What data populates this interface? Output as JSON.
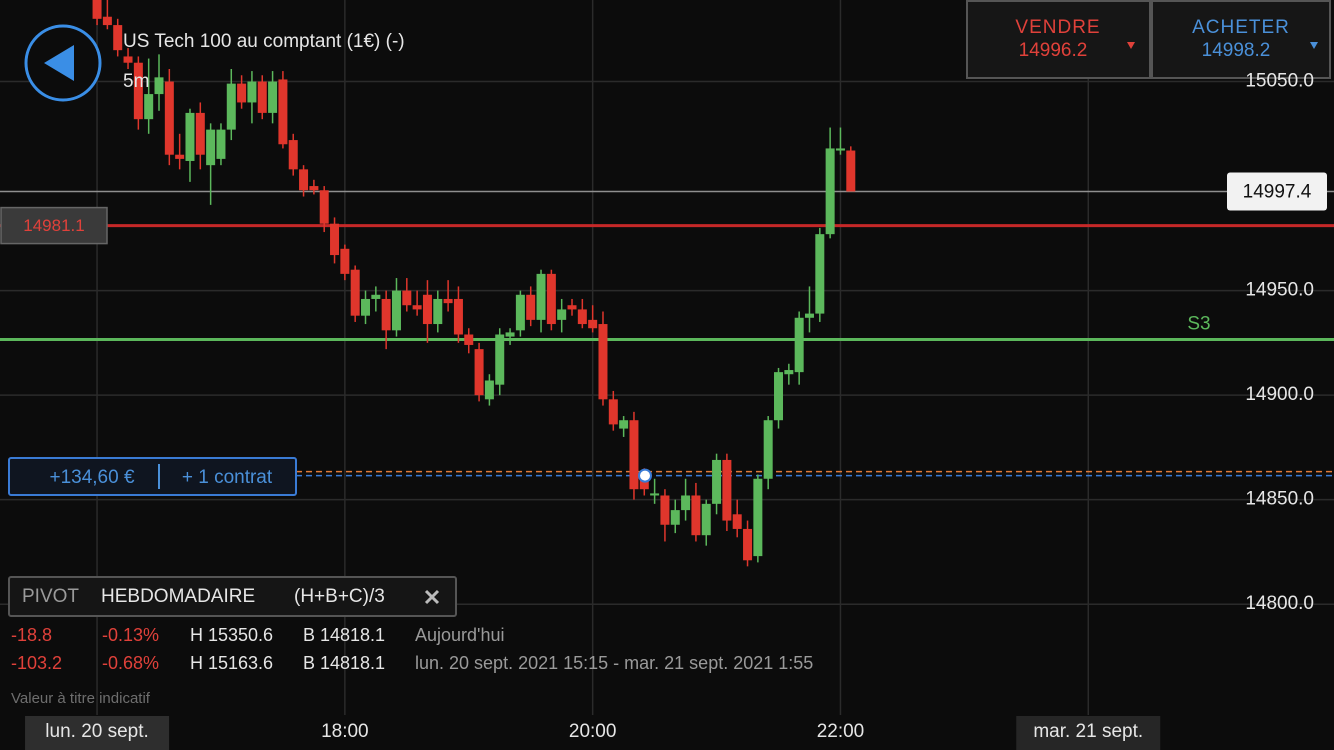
{
  "header": {
    "title": "US Tech 100 au comptant (1€) (-)",
    "interval": "5m"
  },
  "quotes": {
    "sell_label": "VENDRE",
    "sell": 14996.2,
    "buy_label": "ACHETER",
    "buy": 14998.2
  },
  "chart": {
    "type": "candlestick",
    "x": [
      960,
      965,
      970,
      975,
      980,
      985,
      990,
      995,
      1000,
      1005,
      1010,
      1015,
      1020,
      1025,
      1030,
      1035,
      1040,
      1045,
      1050,
      1055,
      1060,
      1065,
      1070,
      1075,
      1080,
      1085,
      1090,
      1095,
      1100,
      1105,
      1110,
      1115,
      1120,
      1125,
      1130,
      1135,
      1140,
      1145,
      1150,
      1155,
      1160,
      1165,
      1170,
      1175,
      1180,
      1185,
      1190,
      1195,
      1200,
      1205,
      1210,
      1215,
      1220,
      1225,
      1230,
      1235,
      1240,
      1245,
      1250,
      1255,
      1260,
      1265,
      1270,
      1275,
      1280,
      1285,
      1290,
      1295,
      1300,
      1305,
      1310,
      1315,
      1320,
      1325
    ],
    "candles": [
      [
        15089,
        15092,
        15077,
        15080
      ],
      [
        15081,
        15089,
        15075,
        15077
      ],
      [
        15077,
        15080,
        15062,
        15065
      ],
      [
        15062,
        15066,
        15056,
        15059
      ],
      [
        15059,
        15062,
        15027,
        15032
      ],
      [
        15032,
        15061,
        15025,
        15044
      ],
      [
        15044,
        15063,
        15036,
        15052
      ],
      [
        15050,
        15056,
        15010,
        15015
      ],
      [
        15015,
        15025,
        15008,
        15013
      ],
      [
        15012,
        15037,
        15002,
        15035
      ],
      [
        15035,
        15040,
        15008,
        15015
      ],
      [
        15010,
        15030,
        14991,
        15027
      ],
      [
        15013,
        15030,
        15010,
        15027
      ],
      [
        15027,
        15056,
        15022,
        15049
      ],
      [
        15049,
        15053,
        15037,
        15040
      ],
      [
        15040,
        15055,
        15030,
        15050
      ],
      [
        15050,
        15053,
        15032,
        15035
      ],
      [
        15035,
        15055,
        15030,
        15050
      ],
      [
        15051,
        15055,
        15018,
        15020
      ],
      [
        15022,
        15025,
        15005,
        15008
      ],
      [
        15008,
        15010,
        14995,
        14998
      ],
      [
        15000,
        15003,
        14996,
        14998
      ],
      [
        14998,
        15000,
        14978,
        14982
      ],
      [
        14982,
        14985,
        14963,
        14967
      ],
      [
        14970,
        14972,
        14955,
        14958
      ],
      [
        14960,
        14962,
        14935,
        14938
      ],
      [
        14938,
        14950,
        14934,
        14946
      ],
      [
        14946,
        14952,
        14940,
        14948
      ],
      [
        14946,
        14950,
        14922,
        14931
      ],
      [
        14931,
        14956,
        14928,
        14950
      ],
      [
        14950,
        14956,
        14940,
        14943
      ],
      [
        14943,
        14950,
        14938,
        14941
      ],
      [
        14948,
        14955,
        14925,
        14934
      ],
      [
        14934,
        14950,
        14930,
        14946
      ],
      [
        14946,
        14955,
        14940,
        14944
      ],
      [
        14946,
        14952,
        14925,
        14929
      ],
      [
        14929,
        14932,
        14920,
        14924
      ],
      [
        14922,
        14925,
        14897,
        14900
      ],
      [
        14898,
        14910,
        14895,
        14907
      ],
      [
        14905,
        14932,
        14900,
        14929
      ],
      [
        14928,
        14932,
        14924,
        14930
      ],
      [
        14931,
        14950,
        14928,
        14948
      ],
      [
        14948,
        14952,
        14933,
        14936
      ],
      [
        14936,
        14960,
        14930,
        14958
      ],
      [
        14958,
        14960,
        14931,
        14934
      ],
      [
        14936,
        14946,
        14930,
        14941
      ],
      [
        14943,
        14946,
        14938,
        14941
      ],
      [
        14941,
        14946,
        14932,
        14934
      ],
      [
        14936,
        14943,
        14930,
        14932
      ],
      [
        14934,
        14940,
        14895,
        14898
      ],
      [
        14898,
        14902,
        14883,
        14886
      ],
      [
        14884,
        14890,
        14880,
        14888
      ],
      [
        14888,
        14892,
        14850,
        14855
      ],
      [
        14862,
        14865,
        14852,
        14855
      ],
      [
        14852,
        14860,
        14848,
        14853
      ],
      [
        14852,
        14855,
        14830,
        14838
      ],
      [
        14838,
        14850,
        14834,
        14845
      ],
      [
        14845,
        14860,
        14840,
        14852
      ],
      [
        14852,
        14858,
        14830,
        14833
      ],
      [
        14833,
        14850,
        14828,
        14848
      ],
      [
        14848,
        14872,
        14843,
        14869
      ],
      [
        14869,
        14872,
        14835,
        14840
      ],
      [
        14843,
        14850,
        14832,
        14836
      ],
      [
        14836,
        14840,
        14818.1,
        14821
      ],
      [
        14823,
        14862,
        14820,
        14860
      ],
      [
        14860,
        14890,
        14855,
        14888
      ],
      [
        14888,
        14913,
        14884,
        14911
      ],
      [
        14910,
        14915,
        14905,
        14912
      ],
      [
        14911,
        14940,
        14905,
        14937
      ],
      [
        14937,
        14952,
        14930,
        14939
      ],
      [
        14939,
        14980,
        14935,
        14977
      ],
      [
        14977,
        15028,
        14975,
        15018
      ],
      [
        15017,
        15028,
        15015,
        15018
      ],
      [
        15017,
        15019,
        14997.4,
        14997.4
      ]
    ],
    "colors": {
      "up": "#5cb85c",
      "down": "#e0362c"
    },
    "xlim": [
      913,
      1559
    ],
    "ylim": [
      14747,
      15089
    ],
    "yticks": [
      {
        "value": 15050,
        "label": "15050.0"
      },
      {
        "value": 14950,
        "label": "14950.0"
      },
      {
        "value": 14900,
        "label": "14900.0"
      },
      {
        "value": 14850,
        "label": "14850.0"
      },
      {
        "value": 14800,
        "label": "14800.0"
      }
    ],
    "xticks": [
      {
        "value": 960,
        "label": "lun. 20 sept."
      },
      {
        "value": 1080,
        "label": "18:00"
      },
      {
        "value": 1200,
        "label": "20:00"
      },
      {
        "value": 1320,
        "label": "22:00"
      },
      {
        "value": 1440,
        "label": "mar. 21 sept."
      }
    ],
    "grid": true,
    "levels": [
      {
        "value": 14997.4,
        "color": "#8f8f8f"
      },
      {
        "value": 14981.1,
        "color": "#c62828"
      },
      {
        "name": "S3",
        "value": 14926.6,
        "color": "#5cb85c"
      }
    ],
    "position": {
      "pnl": "+134,60 €",
      "size": "+ 1 contrat",
      "price": 14861.5,
      "break_even": 14863.4
    }
  },
  "pivot": {
    "label": "PIVOT",
    "period": "HEBDOMADAIRE",
    "formula": "(H+B+C)/3",
    "rows": [
      [
        "-18.8",
        "-0.13%",
        "H 15350.6",
        "B 14818.1",
        "Aujourd'hui"
      ],
      [
        "-103.2",
        "-0.68%",
        "H 15163.6",
        "B 14818.1",
        "lun. 20 sept. 2021 15:15 - mar. 21 sept. 2021 1:55"
      ]
    ]
  },
  "footer": {
    "note": "Valeur à titre indicatif"
  }
}
